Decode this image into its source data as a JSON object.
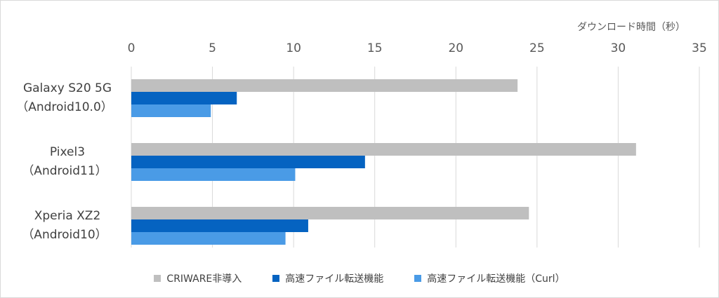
{
  "chart_data": {
    "type": "bar",
    "orientation": "horizontal",
    "xlabel": "ダウンロード時間（秒）",
    "xlim": [
      0,
      35
    ],
    "xticks": [
      "0",
      "5",
      "10",
      "15",
      "20",
      "25",
      "30",
      "35"
    ],
    "categories": [
      {
        "line1": "Galaxy S20 5G",
        "line2": "（Android10.0）"
      },
      {
        "line1": "Pixel3",
        "line2": "（Android11）"
      },
      {
        "line1": "Xperia XZ2",
        "line2": "（Android10）"
      }
    ],
    "series": [
      {
        "name": "CRIWARE非導入",
        "color": "#bfbfbf",
        "values": [
          23.8,
          31.1,
          24.5
        ]
      },
      {
        "name": "高速ファイル転送機能",
        "color": "#0563c1",
        "values": [
          6.5,
          14.4,
          10.9
        ]
      },
      {
        "name": "高速ファイル転送機能（Curl）",
        "color": "#4a9be6",
        "values": [
          4.9,
          10.1,
          9.5
        ]
      }
    ],
    "grid": true,
    "legend_position": "bottom"
  }
}
